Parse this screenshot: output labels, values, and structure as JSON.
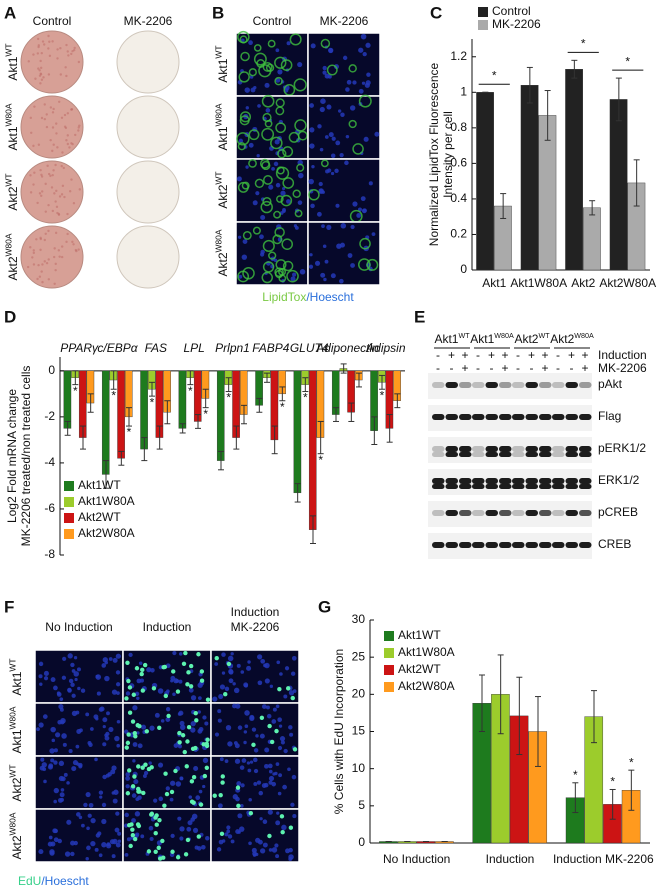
{
  "panels": {
    "A": {
      "letter": "A",
      "columns": [
        "Control",
        "MK-2206"
      ],
      "rows": [
        {
          "base": "Akt1",
          "sup": "WT"
        },
        {
          "base": "Akt1",
          "sup": "W80A"
        },
        {
          "base": "Akt2",
          "sup": "WT"
        },
        {
          "base": "Akt2",
          "sup": "W80A"
        }
      ]
    },
    "B": {
      "letter": "B",
      "columns": [
        "Control",
        "MK-2206"
      ],
      "rows": [
        {
          "base": "Akt1",
          "sup": "WT"
        },
        {
          "base": "Akt1",
          "sup": "W80A"
        },
        {
          "base": "Akt2",
          "sup": "WT"
        },
        {
          "base": "Akt2",
          "sup": "W80A"
        }
      ],
      "caption": [
        "LipidTox",
        "/Hoescht"
      ]
    },
    "E": {
      "letter": "E",
      "groups": [
        {
          "base": "Akt1",
          "sup": "WT"
        },
        {
          "base": "Akt1",
          "sup": "W80A"
        },
        {
          "base": "Akt2",
          "sup": "WT"
        },
        {
          "base": "Akt2",
          "sup": "W80A"
        }
      ],
      "treatments": [
        {
          "label": "Induction",
          "signs": [
            "-",
            "+",
            "+"
          ]
        },
        {
          "label": "MK-2206",
          "signs": [
            "-",
            "-",
            "+"
          ]
        }
      ],
      "blots": [
        "pAkt",
        "Flag",
        "pERK1/2",
        "ERK1/2",
        "pCREB",
        "CREB"
      ]
    },
    "F": {
      "letter": "F",
      "columns": [
        [
          "No Induction"
        ],
        [
          "Induction"
        ],
        [
          "Induction",
          "MK-2206"
        ]
      ],
      "rows": [
        {
          "base": "Akt1",
          "sup": "WT"
        },
        {
          "base": "Akt1",
          "sup": "W80A"
        },
        {
          "base": "Akt2",
          "sup": "WT"
        },
        {
          "base": "Akt2",
          "sup": "W80A"
        }
      ],
      "caption": [
        "EdU",
        "/Hoescht"
      ]
    }
  },
  "chart_data": [
    {
      "type": "bar",
      "letter": "C",
      "ylabel": [
        "Normalized LipidTox Fluorescence",
        "Intensity per cell"
      ],
      "categories": [
        "Akt1",
        "Akt1W80A",
        "Akt2",
        "Akt2W80A"
      ],
      "series": [
        {
          "name": "Control",
          "color": "#222222",
          "values": [
            1.0,
            1.04,
            1.13,
            0.96
          ],
          "errors": [
            0.0,
            0.1,
            0.05,
            0.12
          ]
        },
        {
          "name": "MK-2206",
          "color": "#aaaaaa",
          "values": [
            0.36,
            0.87,
            0.35,
            0.49
          ],
          "errors": [
            0.07,
            0.14,
            0.04,
            0.13
          ]
        }
      ],
      "significance": [
        "*",
        null,
        "*",
        "*"
      ],
      "ylim": [
        0,
        1.3
      ],
      "yticks": [
        0,
        0.2,
        0.4,
        0.6,
        0.8,
        1,
        1.2
      ]
    },
    {
      "type": "bar",
      "letter": "D",
      "ylabel": [
        "Log2 Fold mRNA change",
        "MK-2206 treated/non treated cells"
      ],
      "categories": [
        "PPARγ",
        "c/EBPα",
        "FAS",
        "LPL",
        "Prlpn1",
        "FABP4",
        "GLUT4",
        "Adiponectin",
        "Adipsin"
      ],
      "series": [
        {
          "name": "Akt1WT",
          "color": "#1e7b1e",
          "values": [
            -2.5,
            -4.5,
            -3.4,
            -2.5,
            -3.9,
            -1.5,
            -5.3,
            -1.9,
            -2.6
          ],
          "errors": [
            0.3,
            0.6,
            0.5,
            0.2,
            0.4,
            0.3,
            0.4,
            0.3,
            0.6
          ],
          "markers": [
            null,
            null,
            null,
            null,
            null,
            null,
            null,
            null,
            null
          ]
        },
        {
          "name": "Akt1W80A",
          "color": "#9ccc2c",
          "values": [
            -0.3,
            -0.4,
            -0.8,
            -0.3,
            -0.6,
            -0.3,
            -0.6,
            0.1,
            -0.5
          ],
          "errors": [
            0.3,
            0.4,
            0.3,
            0.3,
            0.3,
            0.2,
            0.3,
            0.2,
            0.3
          ],
          "markers": [
            "*",
            "*",
            "*",
            "*",
            "*",
            null,
            "*",
            null,
            "*"
          ]
        },
        {
          "name": "Akt2WT",
          "color": "#cc1414",
          "values": [
            -2.9,
            -3.8,
            -2.9,
            -2.2,
            -2.9,
            -3.0,
            -6.9,
            -1.8,
            -2.5
          ],
          "errors": [
            0.5,
            0.3,
            0.5,
            0.3,
            0.5,
            0.6,
            0.6,
            0.4,
            0.6
          ],
          "markers": [
            null,
            null,
            null,
            null,
            null,
            null,
            null,
            null,
            null
          ]
        },
        {
          "name": "Akt2W80A",
          "color": "#ff9a1e",
          "values": [
            -1.4,
            -2.0,
            -1.8,
            -1.2,
            -1.9,
            -1.0,
            -2.9,
            -0.4,
            -1.3
          ],
          "errors": [
            0.4,
            0.4,
            0.5,
            0.4,
            0.4,
            0.3,
            0.7,
            0.3,
            0.3
          ],
          "markers": [
            null,
            "*",
            null,
            "*",
            null,
            "*",
            "*",
            null,
            null
          ]
        }
      ],
      "ylim": [
        -8,
        0.6
      ],
      "yticks": [
        0,
        -2,
        -4,
        -6,
        -8
      ]
    },
    {
      "type": "bar",
      "letter": "G",
      "ylabel": [
        "% Cells with EdU Incorporation"
      ],
      "categories": [
        "No Induction",
        "Induction",
        "Induction MK-2206"
      ],
      "series": [
        {
          "name": "Akt1WT",
          "color": "#1e7b1e",
          "values": [
            0.2,
            18.8,
            6.1
          ],
          "errors": [
            0,
            3.8,
            2.0
          ],
          "markers": [
            null,
            null,
            "*"
          ]
        },
        {
          "name": "Akt1W80A",
          "color": "#9ccc2c",
          "values": [
            0.2,
            20,
            17
          ],
          "errors": [
            0,
            5.3,
            3.5
          ],
          "markers": [
            null,
            null,
            null
          ]
        },
        {
          "name": "Akt2WT",
          "color": "#cc1414",
          "values": [
            0.2,
            17.1,
            5.2
          ],
          "errors": [
            0,
            5.2,
            2.0
          ],
          "markers": [
            null,
            null,
            "*"
          ]
        },
        {
          "name": "Akt2W80A",
          "color": "#ff9a1e",
          "values": [
            0.2,
            15,
            7.1
          ],
          "errors": [
            0,
            4.7,
            2.7
          ],
          "markers": [
            null,
            null,
            "*"
          ]
        }
      ],
      "ylim": [
        0,
        30
      ],
      "yticks": [
        0,
        5,
        10,
        15,
        20,
        25,
        30
      ]
    }
  ]
}
